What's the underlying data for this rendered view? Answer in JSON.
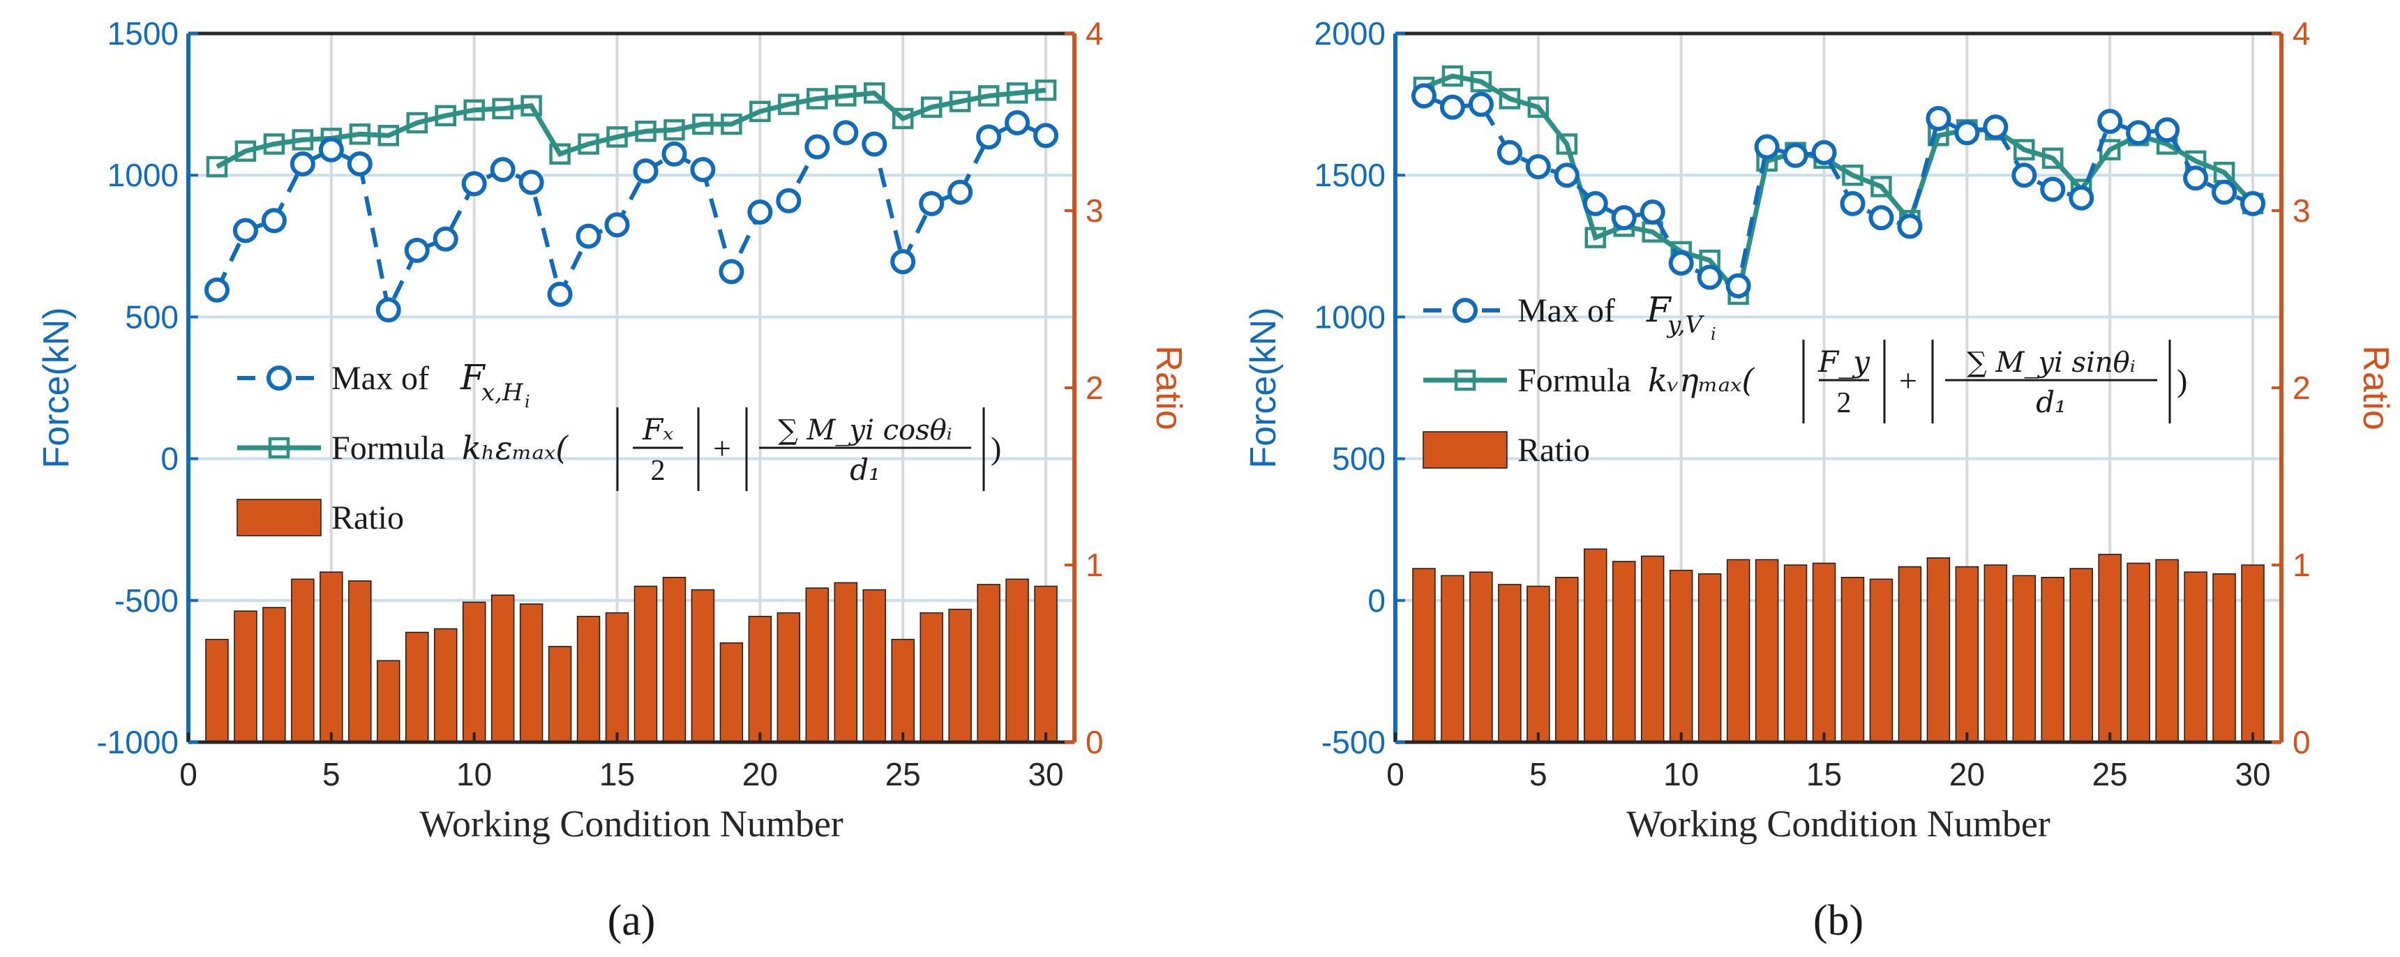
{
  "chart_data": [
    {
      "type": "bar+line",
      "panel_label": "(a)",
      "xlabel": "Working Condition Number",
      "ylabel_left": "Force(kN)",
      "ylabel_right": "Ratio",
      "xlim": [
        0,
        31
      ],
      "ylim_left": [
        -1000,
        1500
      ],
      "ylim_right": [
        0,
        4
      ],
      "x_ticks": [
        "0",
        "5",
        "10",
        "15",
        "20",
        "25",
        "30"
      ],
      "y_ticks_left": [
        "-1000",
        "-500",
        "0",
        "500",
        "1000",
        "1500"
      ],
      "y_ticks_right": [
        "0",
        "1",
        "2",
        "3",
        "4"
      ],
      "legend": {
        "max_label": "Max of",
        "max_math": "F",
        "max_sub": "x,H",
        "max_subsub": "i",
        "formula_label": "Formula",
        "formula_prefix": "kₕεₘₐₓ(",
        "frac1_num": "Fₓ",
        "frac1_den": "2",
        "frac2_num": "∑ M_yi cosθᵢ",
        "frac2_den": "d₁",
        "formula_suffix": ")",
        "ratio_label": "Ratio"
      },
      "x": [
        1,
        2,
        3,
        4,
        5,
        6,
        7,
        8,
        9,
        10,
        11,
        12,
        13,
        14,
        15,
        16,
        17,
        18,
        19,
        20,
        21,
        22,
        23,
        24,
        25,
        26,
        27,
        28,
        29,
        30
      ],
      "series": [
        {
          "name": "Max of F_x,Hi",
          "style": "dashed-circle",
          "values": [
            595,
            805,
            840,
            1040,
            1090,
            1040,
            525,
            735,
            775,
            970,
            1020,
            975,
            580,
            785,
            825,
            1015,
            1075,
            1020,
            660,
            870,
            910,
            1100,
            1150,
            1110,
            695,
            900,
            940,
            1135,
            1185,
            1140
          ]
        },
        {
          "name": "Formula",
          "style": "solid-square",
          "values": [
            1030,
            1085,
            1110,
            1125,
            1130,
            1145,
            1140,
            1185,
            1210,
            1230,
            1235,
            1245,
            1075,
            1110,
            1135,
            1155,
            1160,
            1180,
            1180,
            1225,
            1250,
            1270,
            1280,
            1290,
            1200,
            1240,
            1260,
            1280,
            1290,
            1300
          ]
        }
      ],
      "ratio": [
        0.58,
        0.74,
        0.76,
        0.92,
        0.96,
        0.91,
        0.46,
        0.62,
        0.64,
        0.79,
        0.83,
        0.78,
        0.54,
        0.71,
        0.73,
        0.88,
        0.93,
        0.86,
        0.56,
        0.71,
        0.73,
        0.87,
        0.9,
        0.86,
        0.58,
        0.73,
        0.75,
        0.89,
        0.92,
        0.88
      ]
    },
    {
      "type": "bar+line",
      "panel_label": "(b)",
      "xlabel": "Working Condition Number",
      "ylabel_left": "Force(kN)",
      "ylabel_right": "Ratio",
      "xlim": [
        0,
        31
      ],
      "ylim_left": [
        -500,
        2000
      ],
      "ylim_right": [
        0,
        4
      ],
      "x_ticks": [
        "0",
        "5",
        "10",
        "15",
        "20",
        "25",
        "30"
      ],
      "y_ticks_left": [
        "-500",
        "0",
        "500",
        "1000",
        "1500",
        "2000"
      ],
      "y_ticks_right": [
        "0",
        "1",
        "2",
        "3",
        "4"
      ],
      "legend": {
        "max_label": "Max of",
        "max_math": "F",
        "max_sub": "y,V",
        "max_subsub": "i",
        "formula_label": "Formula",
        "formula_prefix": "kᵥηₘₐₓ(",
        "frac1_num": "F_y",
        "frac1_den": "2",
        "frac2_num": "∑ M_yi sinθᵢ",
        "frac2_den": "d₁",
        "formula_suffix": ")",
        "ratio_label": "Ratio"
      },
      "x": [
        1,
        2,
        3,
        4,
        5,
        6,
        7,
        8,
        9,
        10,
        11,
        12,
        13,
        14,
        15,
        16,
        17,
        18,
        19,
        20,
        21,
        22,
        23,
        24,
        25,
        26,
        27,
        28,
        29,
        30
      ],
      "series": [
        {
          "name": "Max of F_y,Vi",
          "style": "dashed-circle",
          "values": [
            1780,
            1740,
            1750,
            1580,
            1530,
            1500,
            1400,
            1350,
            1370,
            1190,
            1140,
            1110,
            1600,
            1570,
            1580,
            1400,
            1350,
            1320,
            1700,
            1650,
            1670,
            1500,
            1450,
            1420,
            1690,
            1650,
            1660,
            1490,
            1440,
            1400
          ]
        },
        {
          "name": "Formula",
          "style": "solid-square",
          "values": [
            1810,
            1850,
            1830,
            1770,
            1740,
            1610,
            1280,
            1320,
            1300,
            1230,
            1200,
            1080,
            1550,
            1580,
            1560,
            1500,
            1460,
            1340,
            1640,
            1660,
            1660,
            1590,
            1560,
            1450,
            1590,
            1640,
            1610,
            1550,
            1510,
            1400
          ]
        }
      ],
      "ratio": [
        0.98,
        0.94,
        0.96,
        0.89,
        0.88,
        0.93,
        1.09,
        1.02,
        1.05,
        0.97,
        0.95,
        1.03,
        1.03,
        1.0,
        1.01,
        0.93,
        0.92,
        0.99,
        1.04,
        0.99,
        1.0,
        0.94,
        0.93,
        0.98,
        1.06,
        1.01,
        1.03,
        0.96,
        0.95,
        1.0
      ]
    }
  ]
}
